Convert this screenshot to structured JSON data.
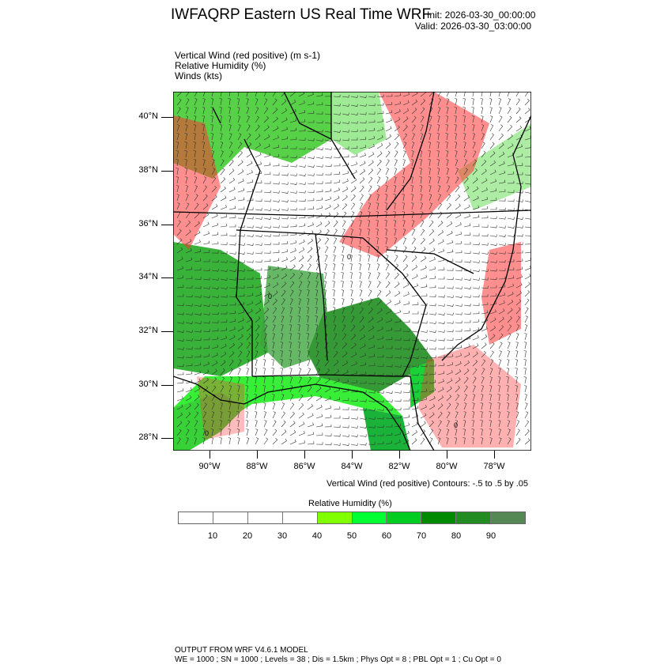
{
  "header": {
    "title": "IWFAQRP Eastern US Real Time WRF",
    "init": "Init: 2026-03-30_00:00:00",
    "valid": "Valid: 2026-03-30_03:00:00"
  },
  "fields": [
    "Vertical Wind (red positive)   (m s-1)",
    "Relative Humidity   (%)",
    "Winds   (kts)"
  ],
  "map": {
    "lat_labels": [
      "40°N",
      "38°N",
      "36°N",
      "34°N",
      "32°N",
      "30°N",
      "28°N"
    ],
    "lon_labels": [
      "90°W",
      "88°W",
      "86°W",
      "84°W",
      "82°W",
      "80°W",
      "78°W"
    ],
    "contour_label": "0"
  },
  "contour_info": "Vertical Wind (red positive) Contours: -.5 to .5 by .05",
  "colorbar": {
    "title": "Relative Humidity  (%)",
    "colors": [
      "#ffffff",
      "#ffffff",
      "#ffffff",
      "#ffffff",
      "#80ff00",
      "#00ff33",
      "#00cc22",
      "#008a00",
      "#228b22",
      "#558855"
    ],
    "labels": [
      "10",
      "20",
      "30",
      "40",
      "50",
      "60",
      "70",
      "80",
      "90"
    ]
  },
  "footer": {
    "line1": "OUTPUT FROM WRF V4.6.1 MODEL",
    "line2": "WE = 1000 ; SN = 1000 ; Levels = 38 ; Dis = 1.5km ; Phys Opt = 8 ; PBL Opt = 1 ; Cu Opt = 0"
  }
}
